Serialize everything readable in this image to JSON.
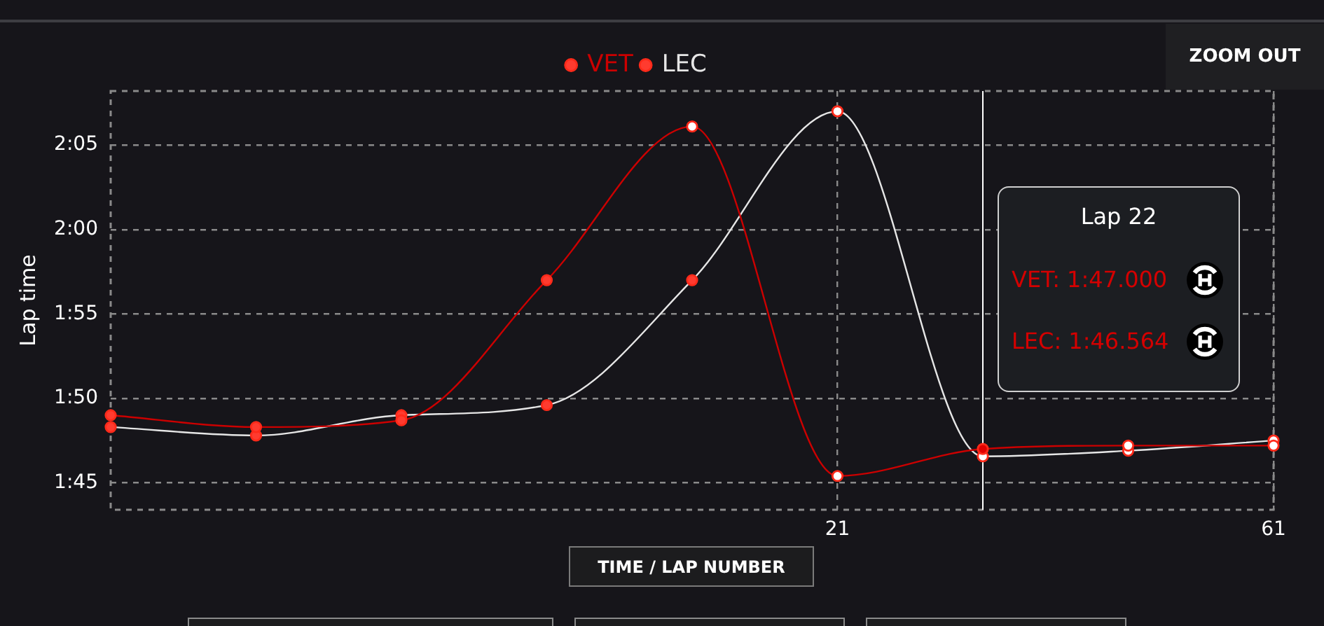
{
  "chart_data": {
    "type": "line",
    "xlabel": "TIME / LAP NUMBER",
    "ylabel": "Lap time",
    "categories": [
      null,
      null,
      null,
      null,
      null,
      "21",
      null,
      null,
      "61"
    ],
    "series": [
      {
        "name": "VET",
        "color": "#cc0000",
        "colors": [
          "#ff3b2f",
          "#ff3b2f",
          "#ff3b2f",
          "#ff3b2f",
          "#ffffff",
          "#ffffff",
          "#e00000",
          "#ffffff",
          "#ffffff"
        ],
        "values": [
          109.0,
          108.3,
          108.7,
          117.0,
          126.1,
          105.4,
          107.0,
          107.2,
          107.2
        ]
      },
      {
        "name": "LEC",
        "color": "#e6e6e6",
        "colors": [
          "#ff3b2f",
          "#ff3b2f",
          "#ff3b2f",
          "#ff3b2f",
          "#ff3b2f",
          "#ffffff",
          "#ffffff",
          "#ffffff",
          "#ffffff"
        ],
        "values": [
          108.3,
          107.8,
          109.0,
          109.6,
          117.0,
          127.0,
          106.564,
          106.9,
          107.5
        ]
      }
    ],
    "ylim": [
      103.4,
      128.2
    ],
    "yticks": [
      {
        "value": 105,
        "label": "1:45"
      },
      {
        "value": 110,
        "label": "1:50"
      },
      {
        "value": 115,
        "label": "1:55"
      },
      {
        "value": 120,
        "label": "2:00"
      },
      {
        "value": 125,
        "label": "2:05"
      }
    ],
    "grid": true,
    "legend": "top",
    "marker": "circle",
    "annotations": [
      "ZOOM OUT",
      "Lap 22",
      "VET: 1:47.000",
      "LEC: 1:46.564"
    ]
  }
}
